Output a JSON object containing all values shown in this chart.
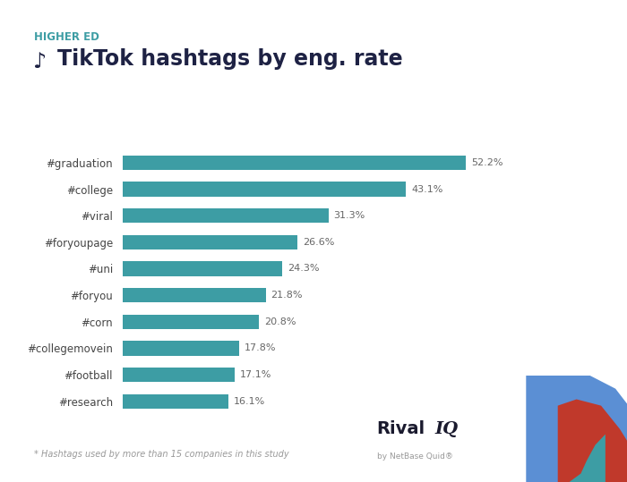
{
  "title": "TikTok hashtags by eng. rate",
  "subtitle": "HIGHER ED",
  "categories": [
    "#graduation",
    "#college",
    "#viral",
    "#foryoupage",
    "#uni",
    "#foryou",
    "#corn",
    "#collegemovein",
    "#football",
    "#research"
  ],
  "values": [
    52.2,
    43.1,
    31.3,
    26.6,
    24.3,
    21.8,
    20.8,
    17.8,
    17.1,
    16.1
  ],
  "labels": [
    "52.2%",
    "43.1%",
    "31.3%",
    "26.6%",
    "24.3%",
    "21.8%",
    "20.8%",
    "17.8%",
    "17.1%",
    "16.1%"
  ],
  "bar_color": "#3d9da4",
  "background_color": "#ffffff",
  "title_color": "#1e2244",
  "subtitle_color": "#3d9da4",
  "label_color": "#666666",
  "footnote": "* Hashtags used by more than 15 companies in this study",
  "by_netbase": "by NetBase Quid®",
  "tiktok_icon": "♪",
  "top_bar_color": "#3d9da4",
  "xlim": [
    0,
    60
  ],
  "rival_color": "#1a1a2e",
  "iq_color": "#3d9da4"
}
